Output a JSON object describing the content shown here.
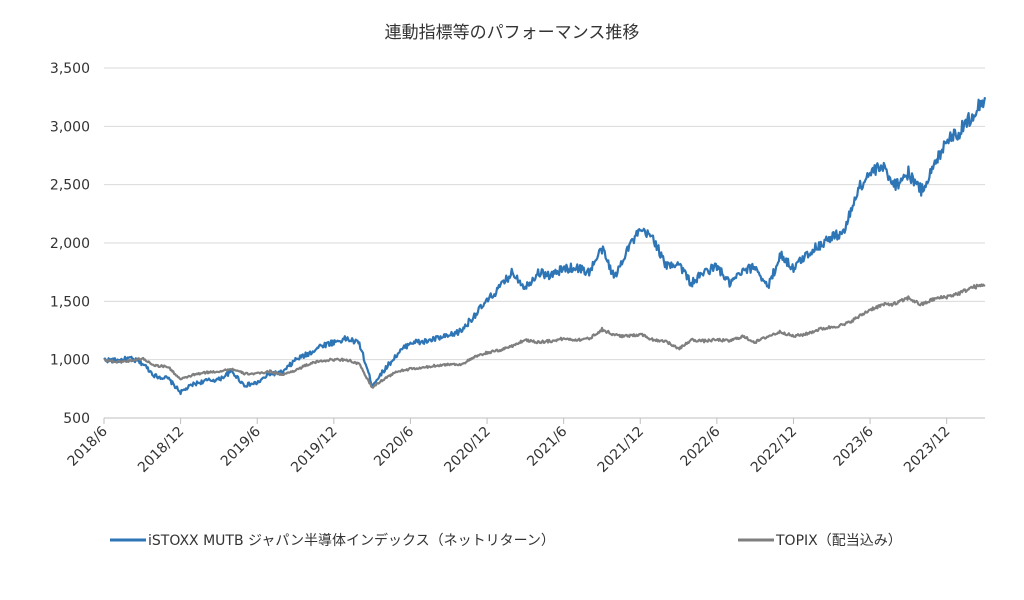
{
  "chart_data": {
    "type": "line",
    "title": "連動指標等のパフォーマンス推移",
    "xlabel": "",
    "ylabel": "",
    "ylim": [
      500,
      3500
    ],
    "y_ticks": [
      "3,500",
      "3,000",
      "2,500",
      "2,000",
      "1,500",
      "1,000",
      "500"
    ],
    "y_tick_values": [
      3500,
      3000,
      2500,
      2000,
      1500,
      1000,
      500
    ],
    "x_ticks": [
      "2018/6",
      "2018/12",
      "2019/6",
      "2019/12",
      "2020/6",
      "2020/12",
      "2021/6",
      "2021/12",
      "2022/6",
      "2022/12",
      "2023/6",
      "2023/12"
    ],
    "x_tick_values": [
      "2018-06",
      "2018-12",
      "2019-06",
      "2019-12",
      "2020-06",
      "2020-12",
      "2021-06",
      "2021-12",
      "2022-06",
      "2022-12",
      "2023-06",
      "2023-12"
    ],
    "xlim": [
      "2018-06",
      "2024-03"
    ],
    "grid": "horizontal",
    "legend_position": "bottom",
    "series": [
      {
        "name": "iSTOXX MUTB ジャパン半導体インデックス（ネットリターン）",
        "color": "#2e75b6",
        "points": [
          [
            "2018-06",
            1000
          ],
          [
            "2018-07",
            990
          ],
          [
            "2018-08",
            1010
          ],
          [
            "2018-09",
            970
          ],
          [
            "2018-10",
            860
          ],
          [
            "2018-11",
            840
          ],
          [
            "2018-12",
            720
          ],
          [
            "2019-01",
            790
          ],
          [
            "2019-02",
            820
          ],
          [
            "2019-03",
            830
          ],
          [
            "2019-04",
            900
          ],
          [
            "2019-05",
            780
          ],
          [
            "2019-06",
            800
          ],
          [
            "2019-07",
            880
          ],
          [
            "2019-08",
            890
          ],
          [
            "2019-09",
            1000
          ],
          [
            "2019-10",
            1050
          ],
          [
            "2019-11",
            1120
          ],
          [
            "2019-12",
            1150
          ],
          [
            "2020-01",
            1180
          ],
          [
            "2020-02",
            1140
          ],
          [
            "2020-03",
            780
          ],
          [
            "2020-04",
            920
          ],
          [
            "2020-05",
            1050
          ],
          [
            "2020-06",
            1150
          ],
          [
            "2020-07",
            1150
          ],
          [
            "2020-08",
            1180
          ],
          [
            "2020-09",
            1200
          ],
          [
            "2020-10",
            1250
          ],
          [
            "2020-11",
            1380
          ],
          [
            "2020-12",
            1500
          ],
          [
            "2021-01",
            1620
          ],
          [
            "2021-02",
            1750
          ],
          [
            "2021-03",
            1620
          ],
          [
            "2021-04",
            1750
          ],
          [
            "2021-05",
            1720
          ],
          [
            "2021-06",
            1780
          ],
          [
            "2021-07",
            1790
          ],
          [
            "2021-08",
            1750
          ],
          [
            "2021-09",
            1950
          ],
          [
            "2021-10",
            1700
          ],
          [
            "2021-11",
            1960
          ],
          [
            "2021-12",
            2100
          ],
          [
            "2022-01",
            2050
          ],
          [
            "2022-02",
            1800
          ],
          [
            "2022-03",
            1830
          ],
          [
            "2022-04",
            1650
          ],
          [
            "2022-05",
            1750
          ],
          [
            "2022-06",
            1800
          ],
          [
            "2022-07",
            1650
          ],
          [
            "2022-08",
            1750
          ],
          [
            "2022-09",
            1800
          ],
          [
            "2022-10",
            1620
          ],
          [
            "2022-11",
            1900
          ],
          [
            "2022-12",
            1780
          ],
          [
            "2023-01",
            1900
          ],
          [
            "2023-02",
            1980
          ],
          [
            "2023-03",
            2050
          ],
          [
            "2023-04",
            2100
          ],
          [
            "2023-05",
            2450
          ],
          [
            "2023-06",
            2600
          ],
          [
            "2023-07",
            2650
          ],
          [
            "2023-08",
            2500
          ],
          [
            "2023-09",
            2600
          ],
          [
            "2023-10",
            2450
          ],
          [
            "2023-11",
            2650
          ],
          [
            "2023-12",
            2900
          ],
          [
            "2024-01",
            2950
          ],
          [
            "2024-02",
            3100
          ],
          [
            "2024-03",
            3250
          ]
        ]
      },
      {
        "name": "TOPIX（配当込み）",
        "color": "#7f7f7f",
        "points": [
          [
            "2018-06",
            1000
          ],
          [
            "2018-07",
            980
          ],
          [
            "2018-08",
            990
          ],
          [
            "2018-09",
            1010
          ],
          [
            "2018-10",
            950
          ],
          [
            "2018-11",
            940
          ],
          [
            "2018-12",
            830
          ],
          [
            "2019-01",
            870
          ],
          [
            "2019-02",
            890
          ],
          [
            "2019-03",
            900
          ],
          [
            "2019-04",
            920
          ],
          [
            "2019-05",
            880
          ],
          [
            "2019-06",
            880
          ],
          [
            "2019-07",
            900
          ],
          [
            "2019-08",
            870
          ],
          [
            "2019-09",
            910
          ],
          [
            "2019-10",
            960
          ],
          [
            "2019-11",
            990
          ],
          [
            "2019-12",
            1000
          ],
          [
            "2020-01",
            1000
          ],
          [
            "2020-02",
            960
          ],
          [
            "2020-03",
            760
          ],
          [
            "2020-04",
            840
          ],
          [
            "2020-05",
            900
          ],
          [
            "2020-06",
            920
          ],
          [
            "2020-07",
            930
          ],
          [
            "2020-08",
            950
          ],
          [
            "2020-09",
            960
          ],
          [
            "2020-10",
            960
          ],
          [
            "2020-11",
            1020
          ],
          [
            "2020-12",
            1060
          ],
          [
            "2021-01",
            1080
          ],
          [
            "2021-02",
            1120
          ],
          [
            "2021-03",
            1170
          ],
          [
            "2021-04",
            1150
          ],
          [
            "2021-05",
            1160
          ],
          [
            "2021-06",
            1180
          ],
          [
            "2021-07",
            1170
          ],
          [
            "2021-08",
            1180
          ],
          [
            "2021-09",
            1260
          ],
          [
            "2021-10",
            1210
          ],
          [
            "2021-11",
            1200
          ],
          [
            "2021-12",
            1220
          ],
          [
            "2022-01",
            1170
          ],
          [
            "2022-02",
            1160
          ],
          [
            "2022-03",
            1090
          ],
          [
            "2022-04",
            1170
          ],
          [
            "2022-05",
            1160
          ],
          [
            "2022-06",
            1170
          ],
          [
            "2022-07",
            1160
          ],
          [
            "2022-08",
            1200
          ],
          [
            "2022-09",
            1150
          ],
          [
            "2022-10",
            1200
          ],
          [
            "2022-11",
            1240
          ],
          [
            "2022-12",
            1200
          ],
          [
            "2023-01",
            1220
          ],
          [
            "2023-02",
            1260
          ],
          [
            "2023-03",
            1280
          ],
          [
            "2023-04",
            1300
          ],
          [
            "2023-05",
            1360
          ],
          [
            "2023-06",
            1430
          ],
          [
            "2023-07",
            1470
          ],
          [
            "2023-08",
            1480
          ],
          [
            "2023-09",
            1530
          ],
          [
            "2023-10",
            1470
          ],
          [
            "2023-11",
            1520
          ],
          [
            "2023-12",
            1540
          ],
          [
            "2024-01",
            1570
          ],
          [
            "2024-02",
            1620
          ],
          [
            "2024-03",
            1640
          ]
        ]
      }
    ]
  }
}
